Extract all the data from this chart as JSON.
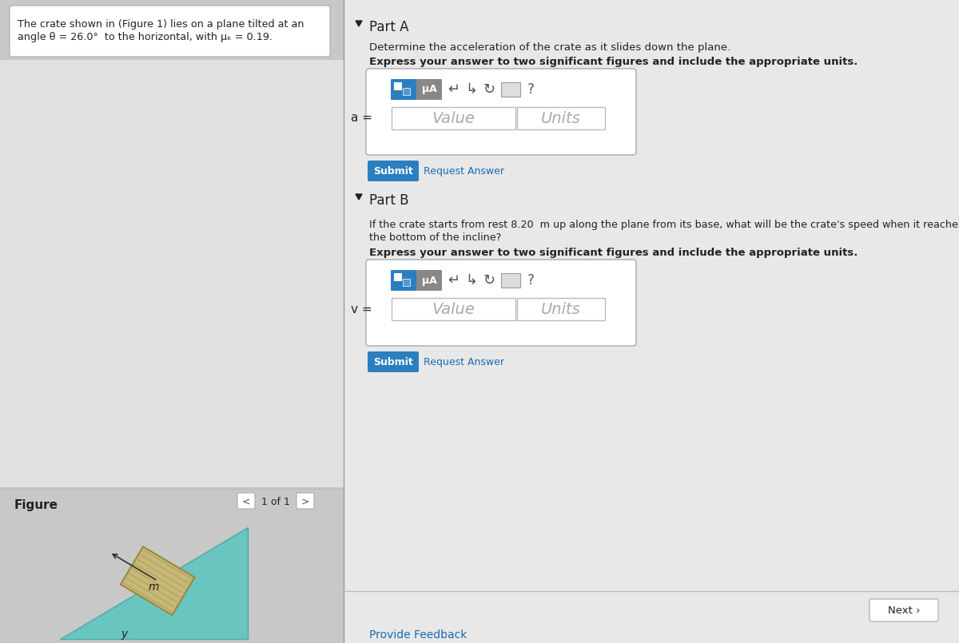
{
  "bg_color": "#b8b8b8",
  "left_panel_bg": "#c8c8c8",
  "right_panel_bg": "#d8d8d8",
  "content_bg": "#e8e8e8",
  "white": "#ffffff",
  "left_box_text_line1": "The crate shown in (Figure 1) lies on a plane tilted at an",
  "left_box_text_line2": "angle θ = 26.0°  to the horizontal, with μₖ = 0.19.",
  "figure_label": "Figure",
  "nav_text": "1 of 1",
  "part_a_label": "Part A",
  "part_a_q": "Determine the acceleration of the crate as it slides down the plane.",
  "part_a_bold": "Express your answer to two significant figures and include the appropriate units.",
  "part_a_var": "a =",
  "part_b_label": "Part B",
  "part_b_q1": "If the crate starts from rest 8.20  m up along the plane from its base, what will be the crate's speed when it reaches",
  "part_b_q2": "the bottom of the incline?",
  "part_b_bold": "Express your answer to two significant figures and include the appropriate units.",
  "part_b_var": "v =",
  "value_text": "Value",
  "units_text": "Units",
  "submit_text": "Submit",
  "request_answer_text": "Request Answer",
  "provide_feedback_text": "Provide Feedback",
  "next_text": "Next ›",
  "toolbar_color": "#2b7fc0",
  "toolbar_color2": "#5599cc",
  "submit_color": "#2b7fc0",
  "triangle_color": "#68c5c0",
  "triangle_edge": "#50a8a4",
  "crate_color": "#c8b878",
  "crate_edge": "#9a8840",
  "crate_lines_color": "#b0a060",
  "arrow_color": "#333333",
  "text_dark": "#222222",
  "text_gray": "#888888",
  "text_blue": "#1a6ab0",
  "border_gray": "#aaaaaa",
  "input_border": "#bbbbbb"
}
